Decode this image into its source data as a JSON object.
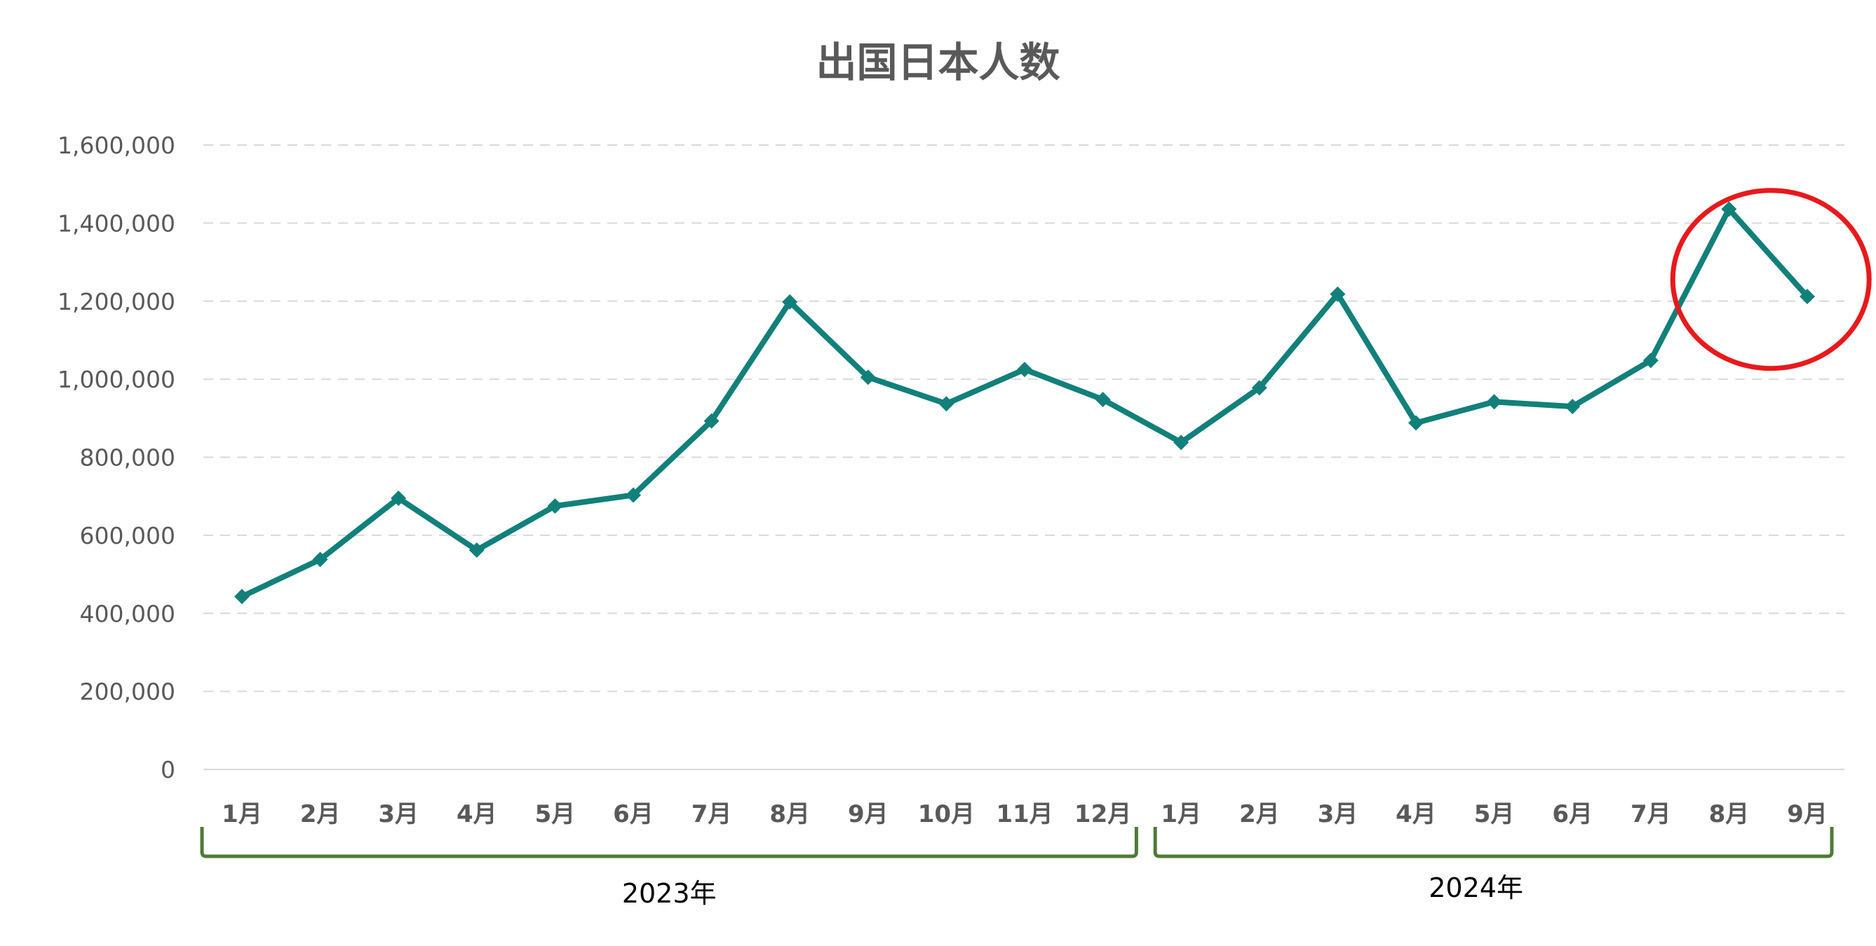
{
  "chart_data": {
    "type": "line",
    "title": "出国日本人数",
    "xlabel": "",
    "ylabel": "",
    "categories": [
      "1月",
      "2月",
      "3月",
      "4月",
      "5月",
      "6月",
      "7月",
      "8月",
      "9月",
      "10月",
      "11月",
      "12月",
      "1月",
      "2月",
      "3月",
      "4月",
      "5月",
      "6月",
      "7月",
      "8月",
      "9月"
    ],
    "year_groups": [
      {
        "label": "2023年",
        "count": 12
      },
      {
        "label": "2024年",
        "count": 9
      }
    ],
    "series": [
      {
        "values": [
          443000,
          538000,
          695000,
          562000,
          675000,
          703000,
          893000,
          1198000,
          1005000,
          937000,
          1025000,
          948000,
          838000,
          978000,
          1218000,
          888000,
          942000,
          930000,
          1048000,
          1436000,
          1212000
        ]
      }
    ],
    "ylim": [
      0,
      1600000
    ],
    "yticks": [
      0,
      200000,
      400000,
      600000,
      800000,
      1000000,
      1200000,
      1400000,
      1600000
    ],
    "ytick_labels": [
      "0",
      "200,000",
      "400,000",
      "600,000",
      "800,000",
      "1,000,000",
      "1,200,000",
      "1,400,000",
      "1,600,000"
    ],
    "grid": true,
    "legend": "none",
    "highlight_range": [
      19,
      20
    ],
    "colors": {
      "line": "#12807a",
      "grid": "#d9d9d9",
      "axis": "#d9d9d9",
      "tick_text": "#595959",
      "bracket": "#4e7b36",
      "highlight": "#e8191c",
      "year_text": "#000000"
    }
  }
}
